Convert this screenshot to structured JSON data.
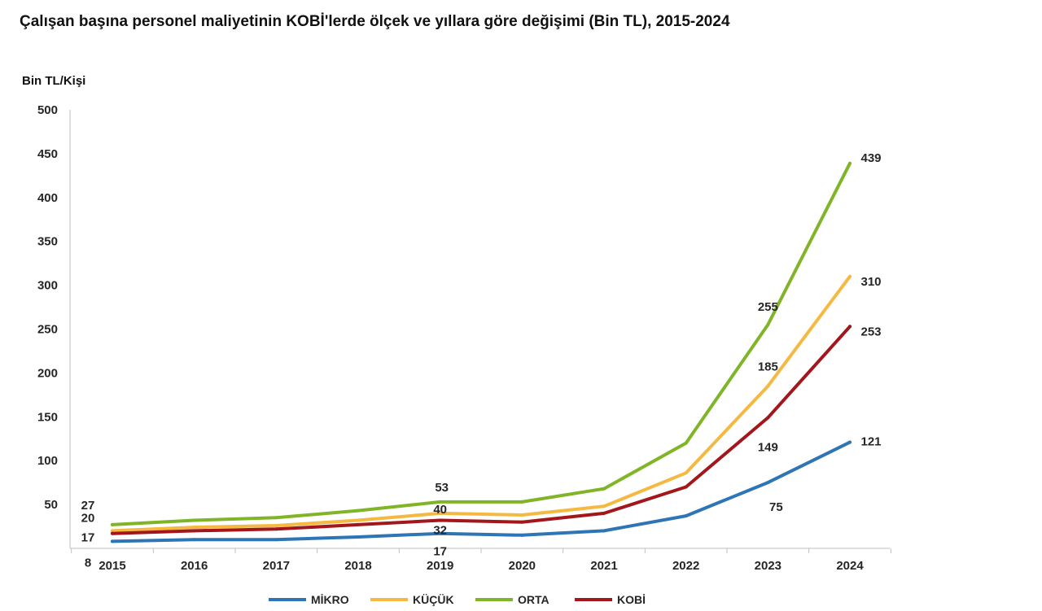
{
  "title": "Çalışan başına personel maliyetinin KOBİ'lerde ölçek ve yıllara göre değişimi (Bin TL), 2015-2024",
  "chart_data": {
    "type": "line",
    "title": "Çalışan başına personel maliyetinin KOBİ'lerde ölçek ve yıllara göre değişimi (Bin TL), 2015-2024",
    "ylabel": "Bin TL/Kişi",
    "xlabel": "",
    "ylim": [
      0,
      500
    ],
    "yticks": [
      50,
      100,
      150,
      200,
      250,
      300,
      350,
      400,
      450,
      500
    ],
    "grid": false,
    "legend_position": "bottom",
    "categories": [
      "2015",
      "2016",
      "2017",
      "2018",
      "2019",
      "2020",
      "2021",
      "2022",
      "2023",
      "2024"
    ],
    "series": [
      {
        "name": "MİKRO",
        "color": "#2e75b6",
        "values": [
          8,
          10,
          10,
          13,
          17,
          15,
          20,
          37,
          75,
          121
        ]
      },
      {
        "name": "KÜÇÜK",
        "color": "#f5b942",
        "values": [
          20,
          24,
          26,
          32,
          40,
          38,
          48,
          86,
          185,
          310
        ]
      },
      {
        "name": "ORTA",
        "color": "#7fb526",
        "values": [
          27,
          32,
          35,
          43,
          53,
          53,
          68,
          120,
          255,
          439
        ]
      },
      {
        "name": "KOBİ",
        "color": "#a3171c",
        "values": [
          17,
          20,
          22,
          27,
          32,
          30,
          40,
          70,
          149,
          253
        ]
      }
    ],
    "data_labels": [
      {
        "series": "ORTA",
        "index": 0,
        "text": "27"
      },
      {
        "series": "KÜÇÜK",
        "index": 0,
        "text": "20"
      },
      {
        "series": "KOBİ",
        "index": 0,
        "text": "17"
      },
      {
        "series": "MİKRO",
        "index": 0,
        "text": "8"
      },
      {
        "series": "ORTA",
        "index": 4,
        "text": "53"
      },
      {
        "series": "KÜÇÜK",
        "index": 4,
        "text": "40"
      },
      {
        "series": "KOBİ",
        "index": 4,
        "text": "32"
      },
      {
        "series": "MİKRO",
        "index": 4,
        "text": "17"
      },
      {
        "series": "ORTA",
        "index": 8,
        "text": "255"
      },
      {
        "series": "KÜÇÜK",
        "index": 8,
        "text": "185"
      },
      {
        "series": "KOBİ",
        "index": 8,
        "text": "149"
      },
      {
        "series": "MİKRO",
        "index": 8,
        "text": "75"
      },
      {
        "series": "ORTA",
        "index": 9,
        "text": "439"
      },
      {
        "series": "KÜÇÜK",
        "index": 9,
        "text": "310"
      },
      {
        "series": "KOBİ",
        "index": 9,
        "text": "253"
      },
      {
        "series": "MİKRO",
        "index": 9,
        "text": "121"
      }
    ]
  }
}
